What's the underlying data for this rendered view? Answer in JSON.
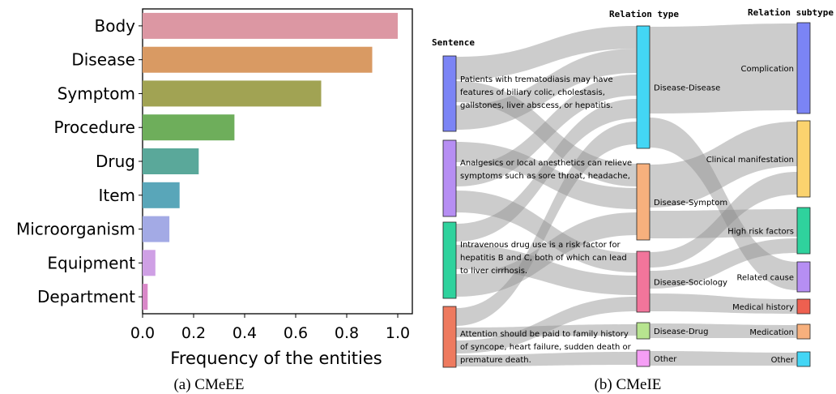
{
  "captions": {
    "a": "(a) CMeEE",
    "b": "(b) CMeIE"
  },
  "chart_data": [
    {
      "type": "bar",
      "orientation": "horizontal",
      "categories": [
        "Body",
        "Disease",
        "Symptom",
        "Procedure",
        "Drug",
        "Item",
        "Microorganism",
        "Equipment",
        "Department"
      ],
      "values": [
        1.0,
        0.9,
        0.7,
        0.36,
        0.22,
        0.145,
        0.105,
        0.05,
        0.02
      ],
      "colors": [
        "#dc97a3",
        "#d99a63",
        "#a1a353",
        "#6eae5b",
        "#5aa89a",
        "#59a6b9",
        "#a3aae5",
        "#cfa0e5",
        "#d988c8"
      ],
      "xlabel": "Frequency of the entities",
      "ylabel": "",
      "xlim": [
        0,
        1.05
      ],
      "xticks": [
        "0.0",
        "0.2",
        "0.4",
        "0.6",
        "0.8",
        "1.0"
      ],
      "grid": false
    },
    {
      "type": "sankey",
      "column_titles": [
        "Sentence",
        "Relation type",
        "Relation subtype"
      ],
      "sentences": [
        {
          "id": "s1",
          "color": "#7b84f5",
          "lines": [
            "Patients with trematodiasis may have",
            "features of biliary colic, cholestasis,",
            "gallstones, liver abscess, or hepatitis."
          ]
        },
        {
          "id": "s2",
          "color": "#b68ef3",
          "lines": [
            "Analgesics or local anesthetics can relieve",
            "symptoms such as sore throat, headache,"
          ]
        },
        {
          "id": "s3",
          "color": "#2fd29d",
          "lines": [
            "Intravenous drug use is a risk factor for",
            "hepatitis B and C, both of which can lead",
            "to liver cirrhosis."
          ]
        },
        {
          "id": "s4",
          "color": "#ee7a5f",
          "lines": [
            "Attention should be paid to family history",
            "of syncope, heart failure, sudden death or",
            "premature death."
          ]
        }
      ],
      "relation_types": [
        {
          "id": "t1",
          "label": "Disease-Disease",
          "color": "#43d6f5"
        },
        {
          "id": "t2",
          "label": "Disease-Symptom",
          "color": "#f7b07d"
        },
        {
          "id": "t3",
          "label": "Disease-Sociology",
          "color": "#f2759b"
        },
        {
          "id": "t4",
          "label": "Disease-Drug",
          "color": "#b7e48f"
        },
        {
          "id": "t5",
          "label": "Other",
          "color": "#f59ef5"
        }
      ],
      "relation_subtypes": [
        {
          "id": "u1",
          "label": "Complication",
          "color": "#7b84f5"
        },
        {
          "id": "u2",
          "label": "Clinical manifestation",
          "color": "#fbd36e"
        },
        {
          "id": "u3",
          "label": "High risk factors",
          "color": "#2fd29d"
        },
        {
          "id": "u4",
          "label": "Related cause",
          "color": "#b68ef3"
        },
        {
          "id": "u5",
          "label": "Medical history",
          "color": "#ee6050"
        },
        {
          "id": "u6",
          "label": "Medication",
          "color": "#f7b07d"
        },
        {
          "id": "u7",
          "label": "Other",
          "color": "#43d6f5"
        }
      ]
    }
  ]
}
